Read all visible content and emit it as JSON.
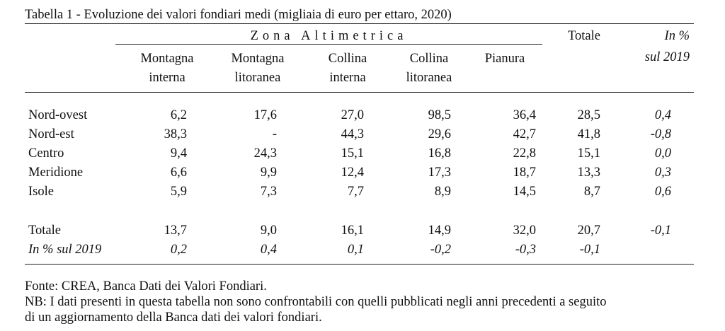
{
  "title": "Tabella 1 - Evoluzione dei valori fondiari medi (migliaia di euro per ettaro, 2020)",
  "zone_header": "Zona Altimetrica",
  "columns": [
    {
      "line1": "Montagna",
      "line2": "interna"
    },
    {
      "line1": "Montagna",
      "line2": "litoranea"
    },
    {
      "line1": "Collina",
      "line2": "interna"
    },
    {
      "line1": "Collina",
      "line2": "litoranea"
    },
    {
      "line1": "Pianura",
      "line2": ""
    }
  ],
  "totale_header": "Totale",
  "pct_header": {
    "line1": "In %",
    "line2": "sul 2019"
  },
  "rows": [
    {
      "label": "Nord-ovest",
      "values": [
        "6,2",
        "17,6",
        "27,0",
        "98,5",
        "36,4",
        "28,5",
        "0,4"
      ]
    },
    {
      "label": "Nord-est",
      "values": [
        "38,3",
        "-",
        "44,3",
        "29,6",
        "42,7",
        "41,8",
        "-0,8"
      ]
    },
    {
      "label": "Centro",
      "values": [
        "9,4",
        "24,3",
        "15,1",
        "16,8",
        "22,8",
        "15,1",
        "0,0"
      ]
    },
    {
      "label": "Meridione",
      "values": [
        "6,6",
        "9,9",
        "12,4",
        "17,3",
        "18,7",
        "13,3",
        "0,3"
      ]
    },
    {
      "label": "Isole",
      "values": [
        "5,9",
        "7,3",
        "7,7",
        "8,9",
        "14,5",
        "8,7",
        "0,6"
      ]
    }
  ],
  "total_row": {
    "label": "Totale",
    "values": [
      "13,7",
      "9,0",
      "16,1",
      "14,9",
      "32,0",
      "20,7",
      "-0,1"
    ]
  },
  "pct_row": {
    "label": "In % sul 2019",
    "values": [
      "0,2",
      "0,4",
      "0,1",
      "-0,2",
      "-0,3",
      "-0,1"
    ]
  },
  "source": "Fonte: CREA, Banca Dati dei Valori Fondiari.",
  "note_line1": "NB: I dati presenti in questa tabella non sono confrontabili con quelli pubblicati negli anni precedenti a seguito",
  "note_line2": "di un aggiornamento della Banca dati dei valori fondiari."
}
